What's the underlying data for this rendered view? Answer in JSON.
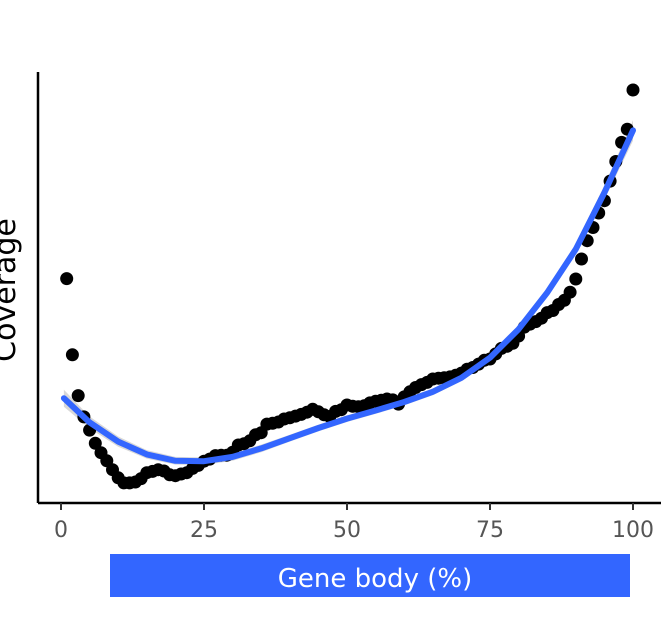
{
  "chart_data": {
    "type": "scatter",
    "xlabel": "Gene body (%)",
    "ylabel": "Coverage",
    "xlim": [
      -4,
      101
    ],
    "ylim": [
      0,
      1
    ],
    "x_ticks": [
      "0",
      "25",
      "50",
      "75",
      "100"
    ],
    "x_tick_values": [
      0,
      25,
      50,
      75,
      100
    ],
    "y_ticks": [],
    "grid": false,
    "legend": "none",
    "colors": {
      "points": "#000000",
      "smooth_line": "#3366ff",
      "confidence_band": "#c8c8c8",
      "xlabel_banner": "#3366ff"
    },
    "series": [
      {
        "type": "scatter",
        "x": [
          1,
          2,
          3,
          4,
          5,
          6,
          7,
          8,
          9,
          10,
          11,
          12,
          13,
          14,
          15,
          16,
          17,
          18,
          19,
          20,
          21,
          22,
          23,
          24,
          25,
          26,
          27,
          28,
          29,
          30,
          31,
          32,
          33,
          34,
          35,
          36,
          37,
          38,
          39,
          40,
          41,
          42,
          43,
          44,
          45,
          46,
          47,
          48,
          49,
          50,
          51,
          52,
          53,
          54,
          55,
          56,
          57,
          58,
          59,
          60,
          61,
          62,
          63,
          64,
          65,
          66,
          67,
          68,
          69,
          70,
          71,
          72,
          73,
          74,
          75,
          76,
          77,
          78,
          79,
          80,
          81,
          82,
          83,
          84,
          85,
          86,
          87,
          88,
          89,
          90,
          91,
          92,
          93,
          94,
          95,
          96,
          97,
          98,
          99,
          100
        ],
        "y": [
          0.492,
          0.313,
          0.217,
          0.167,
          0.136,
          0.105,
          0.083,
          0.064,
          0.043,
          0.024,
          0.012,
          0.012,
          0.014,
          0.022,
          0.036,
          0.039,
          0.043,
          0.04,
          0.031,
          0.029,
          0.033,
          0.036,
          0.046,
          0.053,
          0.063,
          0.068,
          0.076,
          0.077,
          0.077,
          0.084,
          0.101,
          0.104,
          0.111,
          0.125,
          0.13,
          0.15,
          0.152,
          0.155,
          0.162,
          0.165,
          0.169,
          0.173,
          0.178,
          0.185,
          0.179,
          0.172,
          0.168,
          0.18,
          0.184,
          0.195,
          0.192,
          0.191,
          0.193,
          0.2,
          0.204,
          0.206,
          0.209,
          0.207,
          0.197,
          0.214,
          0.226,
          0.236,
          0.243,
          0.248,
          0.256,
          0.258,
          0.259,
          0.261,
          0.265,
          0.27,
          0.279,
          0.283,
          0.291,
          0.3,
          0.303,
          0.315,
          0.328,
          0.333,
          0.34,
          0.357,
          0.378,
          0.385,
          0.391,
          0.399,
          0.412,
          0.417,
          0.431,
          0.441,
          0.46,
          0.491,
          0.538,
          0.581,
          0.612,
          0.646,
          0.675,
          0.721,
          0.767,
          0.812,
          0.843,
          0.935
        ]
      },
      {
        "type": "line",
        "x": [
          0.5,
          5,
          10,
          15,
          20,
          25,
          30,
          35,
          40,
          45,
          50,
          55,
          60,
          65,
          70,
          75,
          80,
          85,
          90,
          95,
          100
        ],
        "y": [
          0.211,
          0.154,
          0.109,
          0.079,
          0.064,
          0.063,
          0.073,
          0.093,
          0.117,
          0.141,
          0.163,
          0.182,
          0.202,
          0.226,
          0.259,
          0.306,
          0.373,
          0.459,
          0.561,
          0.694,
          0.84
        ],
        "band_halfwidth": [
          0.02,
          0.014,
          0.012,
          0.01,
          0.009,
          0.009,
          0.009,
          0.009,
          0.008,
          0.008,
          0.008,
          0.008,
          0.008,
          0.008,
          0.008,
          0.009,
          0.01,
          0.011,
          0.013,
          0.017,
          0.024
        ]
      }
    ]
  }
}
